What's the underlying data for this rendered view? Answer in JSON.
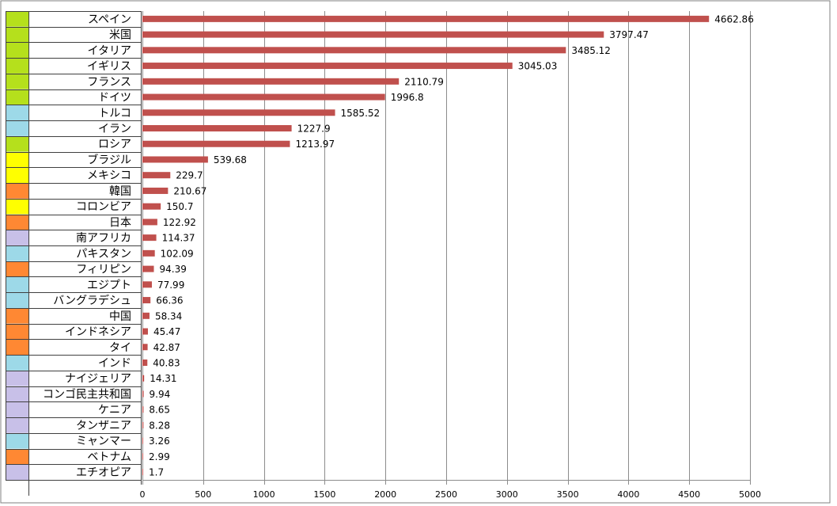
{
  "chart_data": {
    "type": "bar",
    "orientation": "horizontal",
    "categories": [
      "スペイン",
      "米国",
      "イタリア",
      "イギリス",
      "フランス",
      "ドイツ",
      "トルコ",
      "イラン",
      "ロシア",
      "ブラジル",
      "メキシコ",
      "韓国",
      "コロンビア",
      "日本",
      "南アフリカ",
      "パキスタン",
      "フィリピン",
      "エジプト",
      "バングラデシュ",
      "中国",
      "インドネシア",
      "タイ",
      "インド",
      "ナイジェリア",
      "コンゴ民主共和国",
      "ケニア",
      "タンザニア",
      "ミャンマー",
      "ベトナム",
      "エチオピア"
    ],
    "values": [
      4662.86,
      3797.47,
      3485.12,
      3045.03,
      2110.79,
      1996.8,
      1585.52,
      1227.9,
      1213.97,
      539.68,
      229.7,
      210.67,
      150.7,
      122.92,
      114.37,
      102.09,
      94.39,
      77.99,
      66.36,
      58.34,
      45.47,
      42.87,
      40.83,
      14.31,
      9.94,
      8.65,
      8.28,
      3.26,
      2.99,
      1.7
    ],
    "value_labels": [
      "4662.86",
      "3797.47",
      "3485.12",
      "3045.03",
      "2110.79",
      "1996.8",
      "1585.52",
      "1227.9",
      "1213.97",
      "539.68",
      "229.7",
      "210.67",
      "150.7",
      "122.92",
      "114.37",
      "102.09",
      "94.39",
      "77.99",
      "66.36",
      "58.34",
      "45.47",
      "42.87",
      "40.83",
      "14.31",
      "9.94",
      "8.65",
      "8.28",
      "3.26",
      "2.99",
      "1.7"
    ],
    "region_colors": [
      "#b5e01c",
      "#b5e01c",
      "#b5e01c",
      "#b5e01c",
      "#b5e01c",
      "#b5e01c",
      "#9dd9e8",
      "#9dd9e8",
      "#b5e01c",
      "#ffff00",
      "#ffff00",
      "#ff8833",
      "#ffff00",
      "#ff8833",
      "#c8c0e8",
      "#9dd9e8",
      "#ff8833",
      "#9dd9e8",
      "#9dd9e8",
      "#ff8833",
      "#ff8833",
      "#ff8833",
      "#9dd9e8",
      "#c8c0e8",
      "#c8c0e8",
      "#c8c0e8",
      "#c8c0e8",
      "#9dd9e8",
      "#ff8833",
      "#c8c0e8"
    ],
    "bar_color": "#c0504d",
    "xlim": [
      0,
      5000
    ],
    "xticks": [
      0,
      500,
      1000,
      1500,
      2000,
      2500,
      3000,
      3500,
      4000,
      4500,
      5000
    ],
    "xtick_labels": [
      "0",
      "500",
      "1000",
      "1500",
      "2000",
      "2500",
      "3000",
      "3500",
      "4000",
      "4500",
      "5000"
    ],
    "grid": true,
    "title": "",
    "xlabel": "",
    "ylabel": ""
  }
}
